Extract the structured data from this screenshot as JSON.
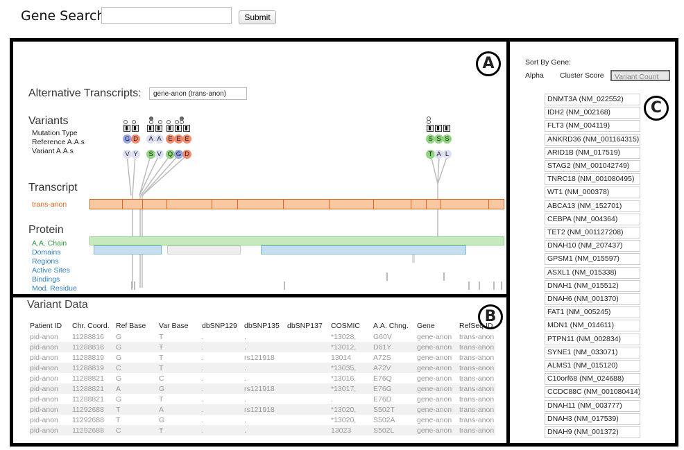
{
  "search": {
    "label": "Gene Search:",
    "placeholder": "",
    "value": "",
    "submit_label": "Submit"
  },
  "badges": {
    "a": "A",
    "b": "B",
    "c": "C"
  },
  "panel_a": {
    "alt_transcripts_label": "Alternative Transcripts:",
    "alt_transcripts_value": "gene-anon (trans-anon)",
    "variants_title": "Variants",
    "variant_rows": [
      "Mutation Type",
      "Reference A.A.s",
      "Variant A.A.s"
    ],
    "transcript_title": "Transcript",
    "transcript_name": "trans-anon",
    "protein_title": "Protein",
    "protein_rows": [
      "A.A. Chain",
      "Domains",
      "Regions",
      "Active Sites",
      "Bindings",
      "Mod. Residue"
    ],
    "ref_aas": [
      "G",
      "D",
      "A",
      "A",
      "E",
      "E",
      "E",
      "S",
      "S",
      "S"
    ],
    "var_aas": [
      "V",
      "Y",
      "S",
      "V",
      "Q",
      "G",
      "D",
      "T",
      "A",
      "L"
    ],
    "colors": {
      "transcript": "#e0651a",
      "protein_label": "#2f7fc1",
      "aa_chain_label": "#2e9a3a",
      "chain_fill": "#c6e9c0",
      "domain_fill": "#c6dff0"
    }
  },
  "panel_b": {
    "title": "Variant Data",
    "columns": [
      "Patient ID",
      "Chr. Coord.",
      "Ref Base",
      "Var Base",
      "dbSNP129",
      "dbSNP135",
      "dbSNP137",
      "COSMIC",
      "A.A. Chng.",
      "Gene",
      "RefSeq ID"
    ],
    "rows": [
      [
        "pid-anon",
        "11288816",
        "G",
        "T",
        ".",
        ".",
        "",
        "*13028,",
        "G60V",
        "gene-anon",
        "trans-anon"
      ],
      [
        "pid-anon",
        "11288816",
        "G",
        "T",
        ".",
        ".",
        "",
        "*13012,",
        "D61Y",
        "gene-anon",
        "trans-anon"
      ],
      [
        "pid-anon",
        "11288819",
        "G",
        "T",
        ".",
        "rs121918",
        "",
        "13014",
        "A72S",
        "gene-anon",
        "trans-anon"
      ],
      [
        "pid-anon",
        "11288819",
        "C",
        "T",
        ".",
        ".",
        "",
        "*13035,",
        "A72V",
        "gene-anon",
        "trans-anon"
      ],
      [
        "pid-anon",
        "11288821",
        "G",
        "C",
        ".",
        ".",
        "",
        "*13016,",
        "E76Q",
        "gene-anon",
        "trans-anon"
      ],
      [
        "pid-anon",
        "11288821",
        "A",
        "G",
        ".",
        "rs121918",
        "",
        "*13017,",
        "E76G",
        "gene-anon",
        "trans-anon"
      ],
      [
        "pid-anon",
        "11288821",
        "G",
        "T",
        ".",
        ".",
        "",
        ".",
        "E76D",
        "gene-anon",
        "trans-anon"
      ],
      [
        "pid-anon",
        "11292688",
        "T",
        "A",
        ".",
        "rs121918",
        "",
        "*13020,",
        "S502T",
        "gene-anon",
        "trans-anon"
      ],
      [
        "pid-anon",
        "11292688",
        "T",
        "G",
        ".",
        ".",
        "",
        "*13020,",
        "S502A",
        "gene-anon",
        "trans-anon"
      ],
      [
        "pid-anon",
        "11292688",
        "C",
        "T",
        ".",
        ".",
        "",
        "13023",
        "S502L",
        "gene-anon",
        "trans-anon"
      ]
    ]
  },
  "panel_c": {
    "sort_label": "Sort By Gene:",
    "sort_options": [
      "Alpha",
      "Cluster Score",
      "Variant Count"
    ],
    "selected_sort": "Variant Count",
    "genes": [
      "DNMT3A (NM_022552)",
      "IDH2 (NM_002168)",
      "FLT3 (NM_004119)",
      "ANKRD36 (NM_001164315)",
      "ARID1B (NM_017519)",
      "STAG2 (NM_001042749)",
      "TNRC18 (NM_001080495)",
      "WT1 (NM_000378)",
      "ABCA13 (NM_152701)",
      "CEBPA (NM_004364)",
      "TET2 (NM_001127208)",
      "DNAH10 (NM_207437)",
      "GPSM1 (NM_015597)",
      "ASXL1 (NM_015338)",
      "DNAH1 (NM_015512)",
      "DNAH6 (NM_001370)",
      "FAT1 (NM_005245)",
      "MDN1 (NM_014611)",
      "PTPN11 (NM_002834)",
      "SYNE1 (NM_033071)",
      "ALMS1 (NM_015120)",
      "C10orf68 (NM_024688)",
      "CCDC88C (NM_001080414)",
      "DNAH11 (NM_003777)",
      "DNAH3 (NM_017539)",
      "DNAH9 (NM_001372)"
    ]
  }
}
